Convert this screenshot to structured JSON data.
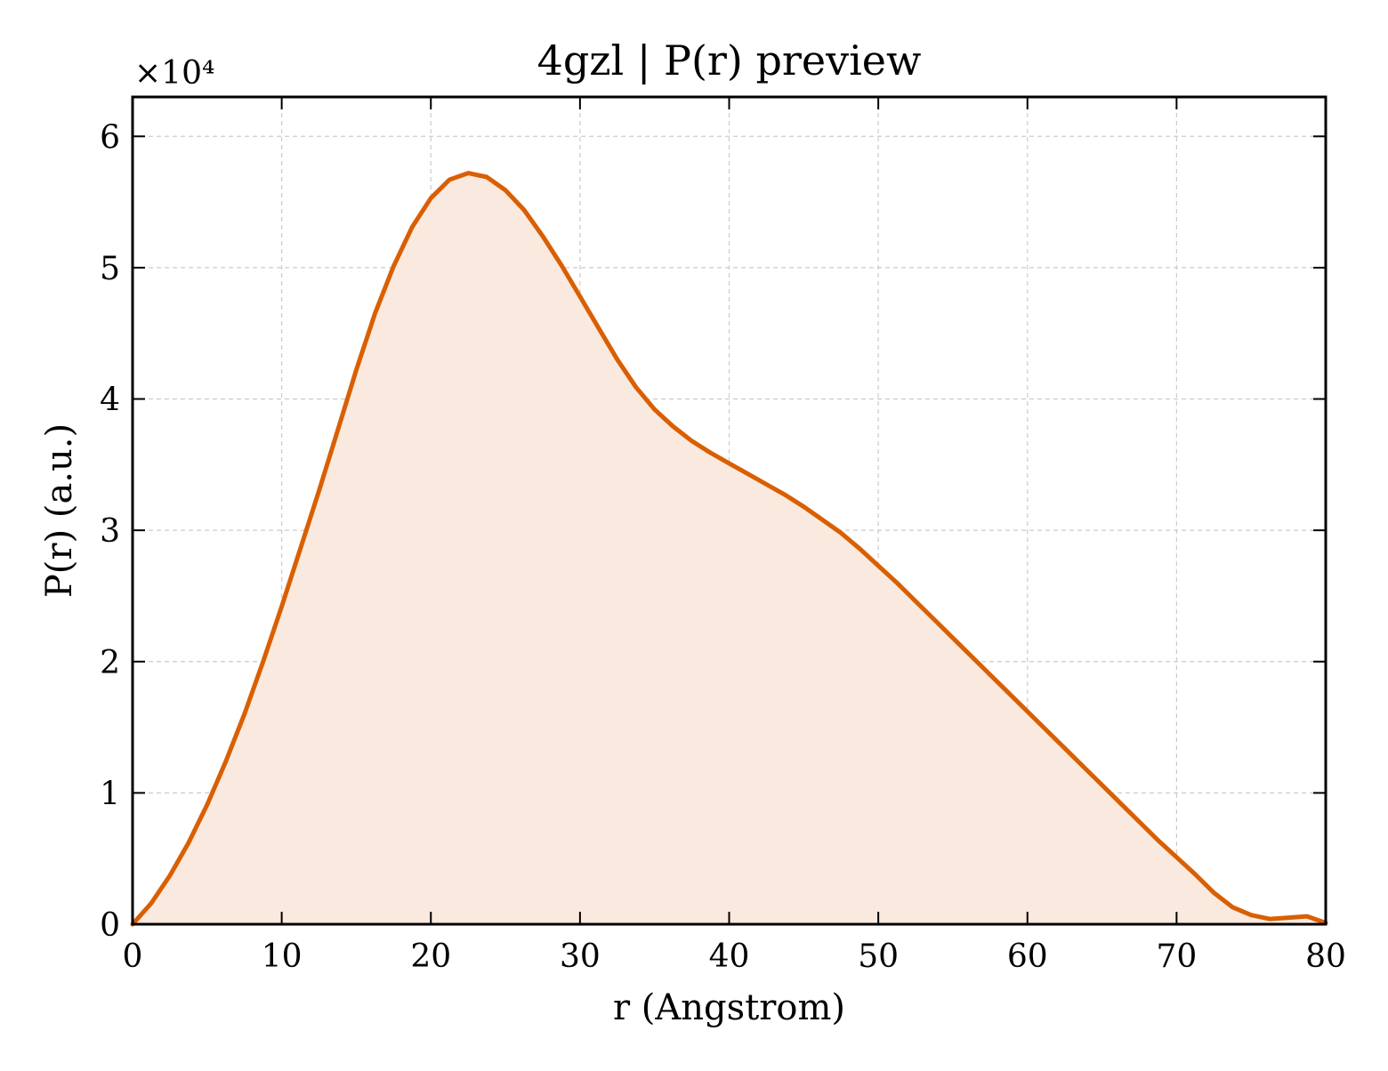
{
  "chart_data": {
    "type": "area",
    "title": "4gzl | P(r) preview",
    "xlabel": "r (Angstrom)",
    "ylabel": "P(r) (a.u.)",
    "y_multiplier": "×10⁴",
    "xlim": [
      0,
      80
    ],
    "ylim": [
      0,
      6.3
    ],
    "y_scale_note": "values in units of 10^4",
    "xticks": [
      0,
      10,
      20,
      30,
      40,
      50,
      60,
      70,
      80
    ],
    "yticks": [
      0,
      1,
      2,
      3,
      4,
      5,
      6
    ],
    "grid": true,
    "line_color": "#d95f02",
    "fill_color": "#fae9de",
    "series": [
      {
        "x": [
          0,
          1.25,
          2.5,
          3.75,
          5,
          6.25,
          7.5,
          8.75,
          10,
          11.25,
          12.5,
          13.75,
          15,
          16.25,
          17.5,
          18.75,
          20,
          21.25,
          22.5,
          23.75,
          25,
          26.25,
          27.5,
          28.75,
          30,
          31.25,
          32.5,
          33.75,
          35,
          36.25,
          37.5,
          38.75,
          40,
          41.25,
          42.5,
          43.75,
          45,
          46.25,
          47.5,
          48.75,
          50,
          51.25,
          52.5,
          53.75,
          55,
          56.25,
          57.5,
          58.75,
          60,
          61.25,
          62.5,
          63.75,
          65,
          66.25,
          67.5,
          68.75,
          70,
          71.25,
          72.5,
          73.75,
          75,
          76.25,
          77.5,
          78.75,
          80
        ],
        "values": [
          0,
          0.16,
          0.37,
          0.62,
          0.91,
          1.24,
          1.6,
          2.0,
          2.42,
          2.86,
          3.3,
          3.76,
          4.22,
          4.65,
          5.01,
          5.31,
          5.53,
          5.67,
          5.72,
          5.69,
          5.59,
          5.44,
          5.24,
          5.02,
          4.78,
          4.54,
          4.3,
          4.09,
          3.92,
          3.79,
          3.68,
          3.59,
          3.51,
          3.43,
          3.35,
          3.27,
          3.18,
          3.08,
          2.98,
          2.86,
          2.73,
          2.6,
          2.46,
          2.32,
          2.18,
          2.04,
          1.9,
          1.76,
          1.62,
          1.48,
          1.34,
          1.2,
          1.06,
          0.92,
          0.78,
          0.64,
          0.51,
          0.38,
          0.24,
          0.13,
          0.07,
          0.04,
          0.05,
          0.06,
          0.01
        ]
      }
    ]
  }
}
